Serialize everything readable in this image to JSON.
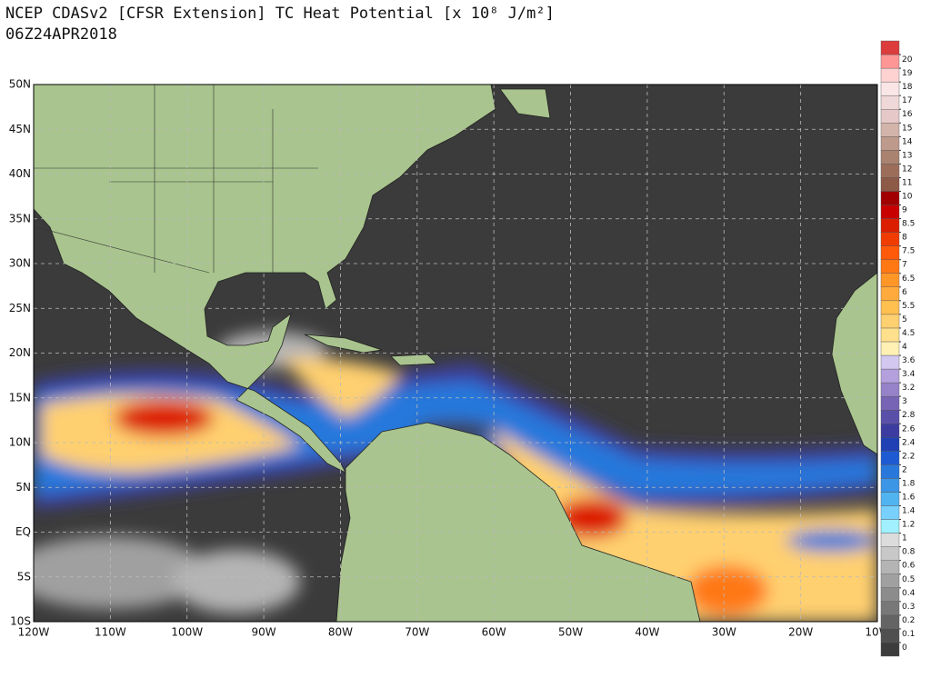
{
  "title": "NCEP CDASv2 [CFSR Extension] TC Heat Potential [x 10⁸ J/m²]",
  "subtitle": "06Z24APR2018",
  "map": {
    "lat_labels": [
      "50N",
      "45N",
      "40N",
      "35N",
      "30N",
      "25N",
      "20N",
      "15N",
      "10N",
      "5N",
      "EQ",
      "5S",
      "10S"
    ],
    "lon_labels": [
      "120W",
      "110W",
      "100W",
      "90W",
      "80W",
      "70W",
      "60W",
      "50W",
      "40W",
      "30W",
      "20W",
      "10W"
    ]
  },
  "colorbar": {
    "ticks": [
      0,
      0.1,
      0.2,
      0.3,
      0.4,
      0.5,
      0.6,
      0.8,
      1,
      1.2,
      1.4,
      1.6,
      1.8,
      2,
      2.2,
      2.4,
      2.6,
      2.8,
      3,
      3.2,
      3.4,
      3.6,
      4,
      4.5,
      5,
      5.5,
      6,
      6.5,
      7,
      7.5,
      8,
      8.5,
      9,
      10,
      11,
      12,
      13,
      14,
      15,
      16,
      17,
      18,
      19,
      20
    ],
    "colors": [
      "#3c3c3c",
      "#505050",
      "#646464",
      "#787878",
      "#8c8c8c",
      "#a0a0a0",
      "#b4b4b4",
      "#c8c8c8",
      "#dcdcdc",
      "#a0f0ff",
      "#78d0ff",
      "#50b4f0",
      "#3c96e6",
      "#2878dc",
      "#1e5ad2",
      "#2040b4",
      "#3c3ca0",
      "#5a50aa",
      "#7864b4",
      "#9682c8",
      "#b4a0dc",
      "#d2c8f0",
      "#fff0b4",
      "#ffe08c",
      "#ffd070",
      "#ffc050",
      "#ffaa3c",
      "#ff9628",
      "#ff7814",
      "#ff5a0a",
      "#f03c00",
      "#dc1e00",
      "#c80000",
      "#a00000",
      "#8c5a46",
      "#9c6e5a",
      "#aa8270",
      "#be9a8c",
      "#d2b4aa",
      "#e6c8c8",
      "#f0d8d8",
      "#fae6e6",
      "#ffd2d2",
      "#ff9696",
      "#dc3c3c"
    ]
  }
}
